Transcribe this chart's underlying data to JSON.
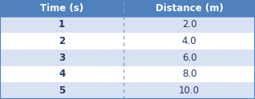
{
  "col_headers": [
    "Time (s)",
    "Distance (m)"
  ],
  "rows": [
    [
      "1",
      "2.0"
    ],
    [
      "2",
      "4.0"
    ],
    [
      "3",
      "6.0"
    ],
    [
      "4",
      "8.0"
    ],
    [
      "5",
      "10.0"
    ]
  ],
  "header_bg_color": "#4F81BD",
  "header_text_color": "#FFFFFF",
  "row_colors": [
    "#D9E2F3",
    "#FFFFFF",
    "#D9E2F3",
    "#FFFFFF",
    "#D9E2F3"
  ],
  "cell_text_color": "#1F3864",
  "header_font_size": 8.5,
  "cell_font_size": 8.5,
  "col_divider_color": "#7BA4D9",
  "outer_border_color": "#4F81BD",
  "fig_width": 3.18,
  "fig_height": 1.24,
  "dpi": 100,
  "col_split": 0.485
}
